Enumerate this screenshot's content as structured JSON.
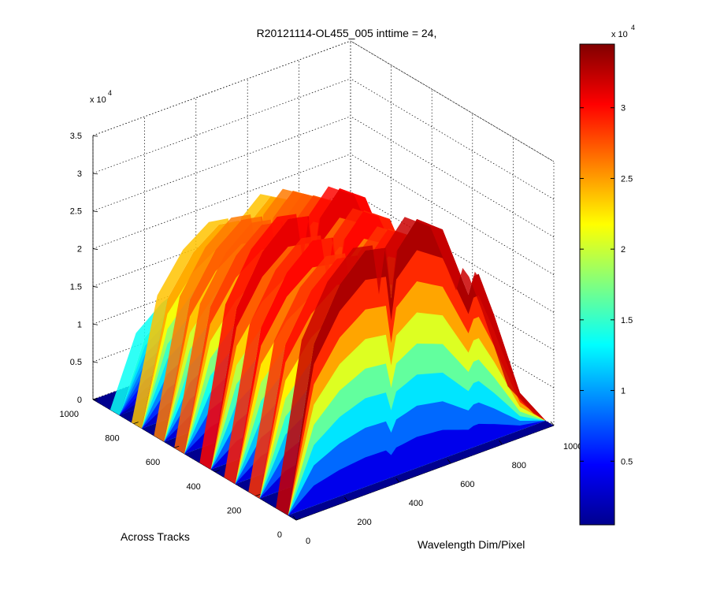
{
  "chart_data": {
    "type": "surface3d",
    "title": "R20121114-OL455_005 inttime = 24,",
    "xlabel": "Wavelength Dim/Pixel",
    "ylabel": "Across Tracks",
    "zlabel": "",
    "z_multiplier_label": "x 10",
    "z_multiplier_exponent": "4",
    "xlim": [
      0,
      1000
    ],
    "ylim": [
      0,
      1000
    ],
    "zlim": [
      0,
      35000
    ],
    "x_ticks": [
      "0",
      "200",
      "400",
      "600",
      "800",
      "1000"
    ],
    "y_ticks": [
      "0",
      "200",
      "400",
      "600",
      "800",
      "1000"
    ],
    "z_ticks": [
      "0",
      "0.5",
      "1",
      "1.5",
      "2",
      "2.5",
      "3",
      "3.5"
    ],
    "grid": true,
    "colormap": "jet",
    "colorbar": {
      "multiplier_label": "x 10",
      "multiplier_exponent": "4",
      "range": [
        500,
        34500
      ],
      "ticks": [
        "0.5",
        "1",
        "1.5",
        "2",
        "2.5",
        "3"
      ],
      "tick_values": [
        5000,
        10000,
        15000,
        20000,
        25000,
        30000
      ]
    },
    "wavelength_profile": {
      "x": [
        0,
        100,
        200,
        300,
        380,
        400,
        420,
        500,
        600,
        640,
        700,
        730,
        800,
        900,
        1000
      ],
      "relative_intensity": [
        0,
        0.65,
        0.85,
        0.95,
        0.93,
        0.72,
        0.9,
        1.0,
        0.92,
        0.8,
        0.62,
        0.72,
        0.5,
        0.15,
        0
      ]
    },
    "stripes": [
      {
        "y_from": 40,
        "y_to": 120,
        "peak": 33000
      },
      {
        "y_from": 180,
        "y_to": 250,
        "peak": 29500
      },
      {
        "y_from": 300,
        "y_to": 370,
        "peak": 30000
      },
      {
        "y_from": 420,
        "y_to": 490,
        "peak": 31000
      },
      {
        "y_from": 550,
        "y_to": 610,
        "peak": 28000
      },
      {
        "y_from": 650,
        "y_to": 710,
        "peak": 27000
      },
      {
        "y_from": 760,
        "y_to": 820,
        "peak": 24500
      },
      {
        "y_from": 870,
        "y_to": 920,
        "peak": 14000
      }
    ]
  }
}
